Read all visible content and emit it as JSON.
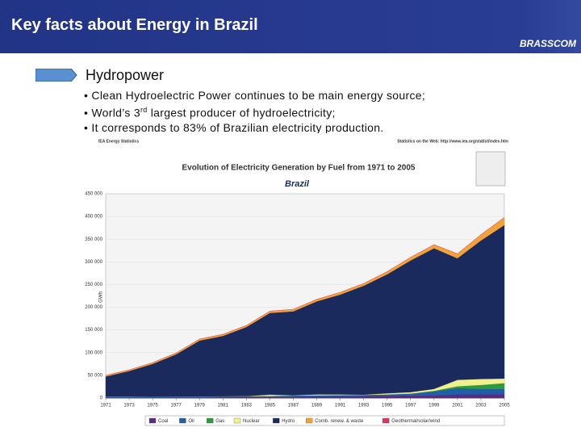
{
  "header": {
    "title": "Key facts about Energy in Brazil",
    "brand": "BRASSCOM"
  },
  "section": "Hydropower",
  "bullets": [
    "Clean Hydroelectric Power continues to be main energy source;",
    [
      "World’s 3",
      "rd",
      " largest producer of hydroelectricity;"
    ],
    "It corresponds to 83% of Brazilian electricity production."
  ],
  "chart_data": {
    "type": "stacked_area",
    "source": "IEA Energy Statistics",
    "web": "Statistics on the Web: http://www.iea.org/statist/index.htm",
    "title": "Evolution of Electricity Generation by Fuel from 1971 to 2005",
    "subtitle": "Brazil",
    "y_label": "GWh",
    "x": [
      1971,
      1973,
      1975,
      1977,
      1979,
      1981,
      1983,
      1985,
      1987,
      1989,
      1991,
      1993,
      1995,
      1997,
      1999,
      2001,
      2003,
      2005
    ],
    "xlim": [
      1971,
      2005
    ],
    "xticks": [
      1971,
      1973,
      1975,
      1977,
      1979,
      1981,
      1983,
      1985,
      1987,
      1989,
      1991,
      1993,
      1995,
      1997,
      1999,
      2001,
      2003,
      2005
    ],
    "ylim": [
      0,
      450000
    ],
    "yticks": [
      0,
      {
        "value": 50000,
        "label": "50 000"
      },
      {
        "value": 100000,
        "label": "100 000"
      },
      {
        "value": 150000,
        "label": "150 000"
      },
      {
        "value": 200000,
        "label": "200 000"
      },
      {
        "value": 250000,
        "label": "250 000"
      },
      {
        "value": 300000,
        "label": "300 000"
      },
      {
        "value": 350000,
        "label": "350 000"
      },
      {
        "value": 400000,
        "label": "400 000"
      },
      {
        "value": 450000,
        "label": "450 000"
      }
    ],
    "grid": true,
    "series": [
      {
        "name": "Coal",
        "color": "#5b2a86",
        "values": [
          500,
          600,
          700,
          800,
          1000,
          1500,
          2000,
          2500,
          3000,
          3500,
          4000,
          4500,
          5000,
          5500,
          6000,
          8000,
          8000,
          9000
        ]
      },
      {
        "name": "Oil",
        "color": "#1f5fa8",
        "values": [
          3000,
          3000,
          2500,
          2500,
          2500,
          2500,
          2500,
          2000,
          2500,
          2500,
          2500,
          2500,
          3000,
          4000,
          9000,
          14000,
          12000,
          11000
        ]
      },
      {
        "name": "Gas",
        "color": "#2e9a3e",
        "values": [
          0,
          0,
          0,
          0,
          0,
          0,
          0,
          0,
          0,
          0,
          0,
          0,
          0,
          500,
          1000,
          4000,
          9000,
          13000
        ]
      },
      {
        "name": "Nuclear",
        "color": "#f2f08c",
        "values": [
          0,
          0,
          0,
          0,
          0,
          0,
          0,
          3000,
          500,
          2000,
          1500,
          400,
          2500,
          3000,
          4000,
          14000,
          13000,
          10000
        ]
      },
      {
        "name": "Hydro",
        "color": "#1b2a5c",
        "values": [
          44000,
          56000,
          72000,
          93000,
          123000,
          133000,
          152000,
          180000,
          185000,
          205000,
          220000,
          240000,
          262000,
          290000,
          310000,
          268000,
          305000,
          338000
        ]
      },
      {
        "name": "Comb. renew. & waste",
        "color": "#f2a23a",
        "values": [
          2500,
          2500,
          2800,
          3000,
          3500,
          3500,
          3500,
          4000,
          4500,
          4500,
          5000,
          5000,
          6000,
          7000,
          8000,
          10000,
          13000,
          17000
        ]
      },
      {
        "name": "Geothermal/solar/wind",
        "color": "#e0335a",
        "values": [
          0,
          0,
          0,
          0,
          0,
          0,
          0,
          0,
          0,
          0,
          0,
          0,
          0,
          0,
          0,
          0,
          0,
          0
        ]
      }
    ]
  }
}
